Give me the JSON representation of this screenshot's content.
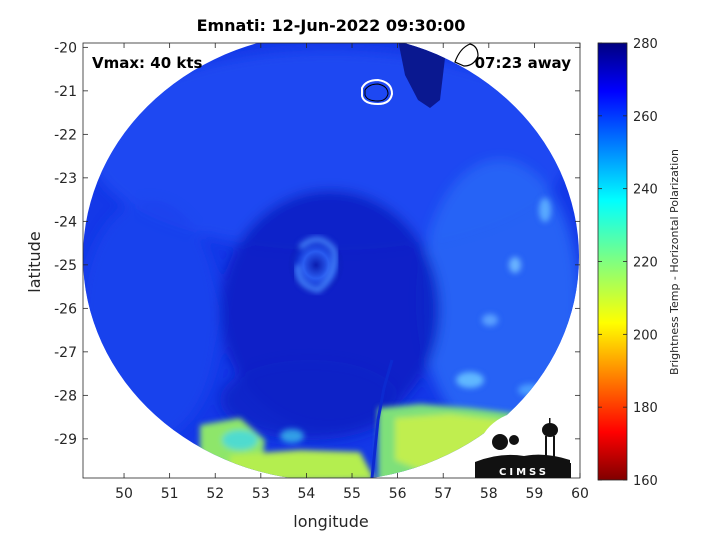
{
  "chart_data": {
    "type": "heatmap",
    "title": "Emnati: 12-Jun-2022 09:30:00",
    "xlabel": "longitude",
    "ylabel": "latitude",
    "xlim": [
      49.1,
      60.0
    ],
    "ylim": [
      -29.9,
      -19.9
    ],
    "xticks": [
      50,
      51,
      52,
      53,
      54,
      55,
      56,
      57,
      58,
      59,
      60
    ],
    "yticks": [
      -20,
      -21,
      -22,
      -23,
      -24,
      -25,
      -26,
      -27,
      -28,
      -29
    ],
    "annotations": {
      "vmax": "Vmax: 40 kts",
      "time_away": "07:23 away"
    },
    "colorbar": {
      "label": "Brightness Temp - Horizontal Polarization",
      "range": [
        160,
        280
      ],
      "ticks": [
        160,
        180,
        200,
        220,
        240,
        260,
        280
      ],
      "colormap": "jet"
    },
    "swath_center": [
      54.6,
      -24.3
    ],
    "storm_center": [
      54.2,
      -25.1
    ],
    "contours": [
      {
        "label": "white",
        "color": "#ffffff",
        "center": [
          55.45,
          -21.15
        ]
      },
      {
        "label": "black",
        "color": "#000000",
        "center": [
          57.6,
          -20.2
        ]
      }
    ],
    "background_level": 258
  },
  "logo": {
    "text": "CIMSS"
  }
}
